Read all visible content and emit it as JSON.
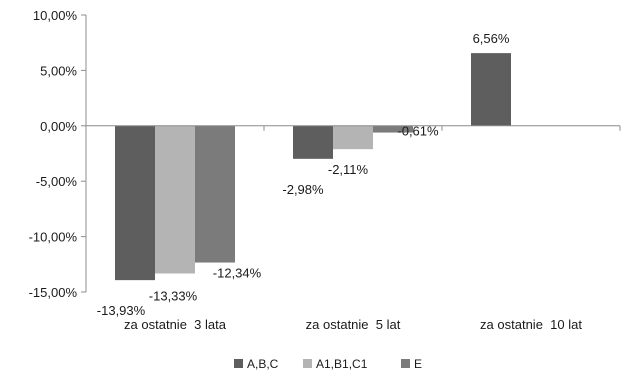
{
  "chart_data": {
    "type": "bar",
    "categories": [
      "za ostatnie  3 lata",
      "za ostatnie  5 lat",
      "za ostatnie  10 lat"
    ],
    "series": [
      {
        "name": "A,B,C",
        "color": "#5e5e5e",
        "values": [
          -13.93,
          -2.98,
          6.56
        ],
        "labels": [
          "-13,93%",
          "-2,98%",
          "6,56%"
        ]
      },
      {
        "name": "A1,B1,C1",
        "color": "#b4b4b4",
        "values": [
          -13.33,
          -2.11,
          null
        ],
        "labels": [
          "-13,33%",
          "-2,11%",
          null
        ]
      },
      {
        "name": "E",
        "color": "#7b7b7b",
        "values": [
          -12.34,
          -0.61,
          null
        ],
        "labels": [
          "-12,34%",
          "-0,61%",
          null
        ]
      }
    ],
    "ylim": [
      -15,
      10
    ],
    "yticks": [
      10,
      5,
      0,
      -5,
      -10,
      -15
    ],
    "ytick_labels": [
      "10,00%",
      "5,00%",
      "0,00%",
      "-5,00%",
      "-10,00%",
      "-15,00%"
    ],
    "grid": false,
    "legend_position": "bottom",
    "title": "",
    "xlabel": "",
    "ylabel": ""
  }
}
